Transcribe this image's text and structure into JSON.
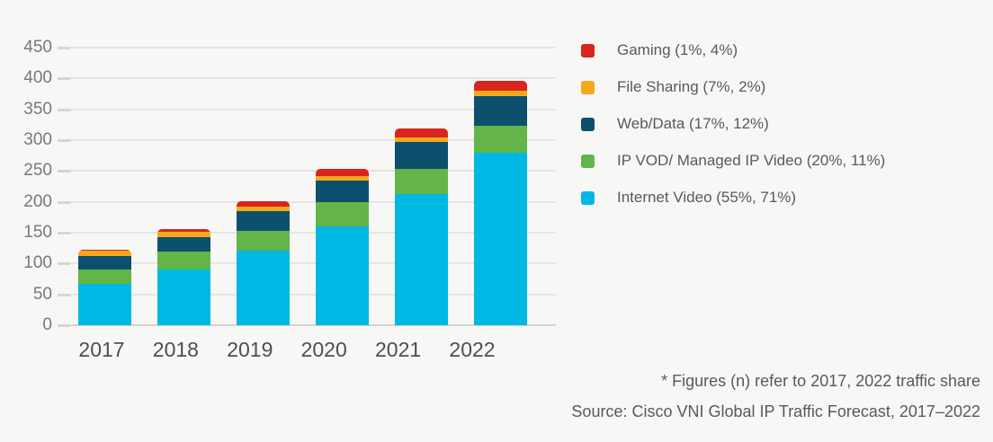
{
  "background_color": "#f7f7f6",
  "chart_data": {
    "type": "bar",
    "stacked": true,
    "categories": [
      "2017",
      "2018",
      "2019",
      "2020",
      "2021",
      "2022"
    ],
    "series_bottom_to_top": [
      {
        "key": "internet-video",
        "name": "Internet Video (55%, 71%)",
        "color": "#00b8e4",
        "values": [
          67,
          90,
          121,
          160,
          213,
          280
        ]
      },
      {
        "key": "ip-vod",
        "name": "IP VOD/ Managed IP Video (20%, 11%)",
        "color": "#62b546",
        "values": [
          24,
          29,
          32,
          39,
          41,
          43
        ]
      },
      {
        "key": "web-data",
        "name": "Web/Data (17%, 12%)",
        "color": "#0d506e",
        "values": [
          20.5,
          24,
          32,
          35,
          43,
          49
        ]
      },
      {
        "key": "file-sharing",
        "name": "File Sharing (7%, 2%)",
        "color": "#f6a81c",
        "values": [
          9,
          9,
          8,
          8,
          8,
          8
        ]
      },
      {
        "key": "gaming",
        "name": "Gaming (1%, 4%)",
        "color": "#d9251e",
        "values": [
          1.5,
          4,
          8,
          12,
          14,
          16
        ]
      }
    ],
    "totals": [
      122,
      156,
      201,
      254,
      319,
      396
    ],
    "ylim": [
      0,
      450
    ],
    "ytick_step": 50,
    "yticks": [
      "0",
      "50",
      "100",
      "150",
      "200",
      "250",
      "300",
      "350",
      "400",
      "450"
    ],
    "grid": true,
    "legend_position": "right-top",
    "title": "",
    "xlabel": "",
    "ylabel": ""
  },
  "legend": {
    "items": [
      {
        "key": "gaming",
        "label": "Gaming (1%, 4%)",
        "color": "#d9251e"
      },
      {
        "key": "file-sharing",
        "label": "File Sharing (7%, 2%)",
        "color": "#f6a81c"
      },
      {
        "key": "web-data",
        "label": "Web/Data (17%, 12%)",
        "color": "#0d506e"
      },
      {
        "key": "ip-vod",
        "label": "IP VOD/ Managed IP Video (20%, 11%)",
        "color": "#62b546"
      },
      {
        "key": "internet-video",
        "label": "Internet Video (55%, 71%)",
        "color": "#00b8e4"
      }
    ]
  },
  "footnote": "* Figures (n) refer to 2017, 2022 traffic share",
  "source": "Source: Cisco VNI Global IP Traffic Forecast, 2017–2022"
}
